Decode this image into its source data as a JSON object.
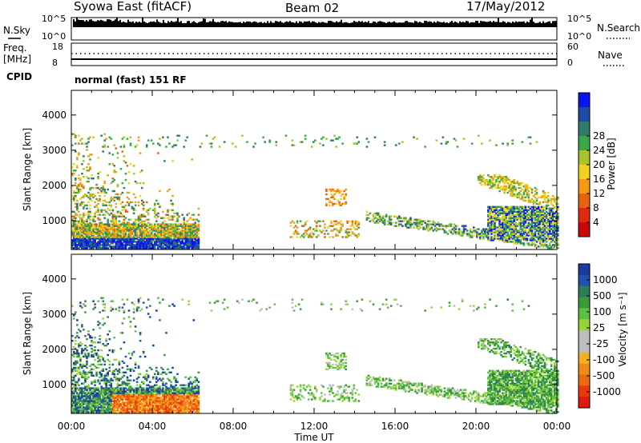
{
  "header": {
    "station": "Syowa East (fitACF)",
    "beam": "Beam 02",
    "date": "17/May/2012"
  },
  "status_strip": {
    "nsky_label": "N.Sky",
    "nsearch_label": "N.Search",
    "noise_left_ticks": [
      "10^5",
      "10^0"
    ],
    "noise_right_ticks": [
      "10^5",
      "10^0"
    ],
    "freq_label": "Freq.",
    "freq_unit": "[MHz]",
    "freq_ticks": [
      "18",
      "8"
    ],
    "nave_label": "Nave",
    "nave_ticks": [
      "60",
      "0"
    ],
    "cpid_label": "CPID",
    "cpid_value": "normal (fast) 151 RF"
  },
  "chart_data": [
    {
      "type": "heatmap",
      "name": "power",
      "ylabel": "Slant Range [km]",
      "xlabel": "Time UT",
      "x_ticks": [
        "00:00",
        "04:00",
        "08:00",
        "12:00",
        "16:00",
        "20:00",
        "00:00"
      ],
      "y_ticks": [
        "1000",
        "2000",
        "3000",
        "4000"
      ],
      "xlim_hours": [
        0,
        24
      ],
      "ylim_km": [
        180,
        4700
      ],
      "colorbar_label": "Power [dB]",
      "colorbar_ticks": [
        "4",
        "8",
        "12",
        "16",
        "20",
        "24",
        "28"
      ],
      "colorbar_colors": [
        "#0a14f0",
        "#1f4aa8",
        "#2e7d6a",
        "#3aa84a",
        "#a8c42a",
        "#f2d21e",
        "#f59a12",
        "#e8640c",
        "#e02a10",
        "#c80808"
      ],
      "regions": [
        {
          "t": [
            0.0,
            6.3
          ],
          "r": [
            200,
            3400
          ],
          "level": "mixed"
        },
        {
          "t": [
            10.5,
            14.0
          ],
          "r": [
            500,
            2000
          ],
          "level": "low"
        },
        {
          "t": [
            16.0,
            24.0
          ],
          "r": [
            400,
            2500
          ],
          "level": "medium-high"
        }
      ]
    },
    {
      "type": "heatmap",
      "name": "velocity",
      "ylabel": "Slant Range [km]",
      "xlabel": "Time UT",
      "x_ticks": [
        "00:00",
        "04:00",
        "08:00",
        "12:00",
        "16:00",
        "20:00",
        "00:00"
      ],
      "y_ticks": [
        "1000",
        "2000",
        "3000",
        "4000"
      ],
      "xlim_hours": [
        0,
        24
      ],
      "ylim_km": [
        180,
        4700
      ],
      "colorbar_label": "Velocity [m s⁻¹]",
      "colorbar_ticks": [
        "1000",
        "500",
        "100",
        "25",
        "-25",
        "-100",
        "-500",
        "-1000"
      ],
      "colorbar_colors": [
        "#1c3aa0",
        "#2050b0",
        "#2e7d5a",
        "#3a9a3a",
        "#5cc040",
        "#9ad23a",
        "#bdbdbd",
        "#bdbdbd",
        "#f5b020",
        "#f08a18",
        "#ec6a10",
        "#e83a0c",
        "#e01a0a"
      ]
    }
  ],
  "colors": {
    "background": "#ffffff",
    "axes": "#000000"
  }
}
